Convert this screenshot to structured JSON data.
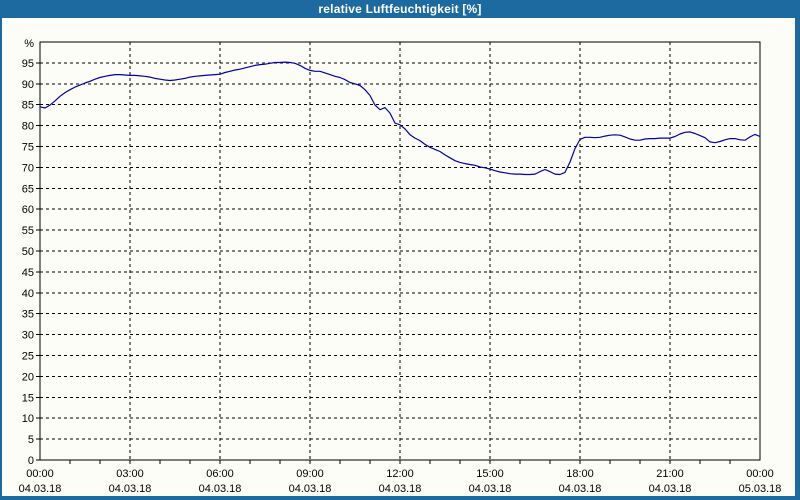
{
  "window": {
    "title": "relative Luftfeuchtigkeit [%]",
    "titlebar_color": "#1c6a9f",
    "background_color": "#fdfdf8"
  },
  "chart_data": {
    "type": "line",
    "title": "relative Luftfeuchtigkeit [%]",
    "ylabel": "%",
    "ylim": [
      0,
      100
    ],
    "y_tick_step": 5,
    "y_tick_labels": [
      "0",
      "5",
      "10",
      "15",
      "20",
      "25",
      "30",
      "35",
      "40",
      "45",
      "50",
      "55",
      "60",
      "65",
      "70",
      "75",
      "80",
      "85",
      "90",
      "95"
    ],
    "xlim_hours": [
      0,
      24
    ],
    "grid": "dashed-black",
    "axis_color": "#000000",
    "legend": "none",
    "x_ticks": [
      {
        "hour": 0,
        "time": "00:00",
        "date": "04.03.18"
      },
      {
        "hour": 3,
        "time": "03:00",
        "date": "04.03.18"
      },
      {
        "hour": 6,
        "time": "06:00",
        "date": "04.03.18"
      },
      {
        "hour": 9,
        "time": "09:00",
        "date": "04.03.18"
      },
      {
        "hour": 12,
        "time": "12:00",
        "date": "04.03.18"
      },
      {
        "hour": 15,
        "time": "15:00",
        "date": "04.03.18"
      },
      {
        "hour": 18,
        "time": "18:00",
        "date": "04.03.18"
      },
      {
        "hour": 21,
        "time": "21:00",
        "date": "04.03.18"
      },
      {
        "hour": 24,
        "time": "00:00",
        "date": "05.03.18"
      }
    ],
    "minor_x_tick_every_hours": 1,
    "series": [
      {
        "name": "relative Luftfeuchtigkeit",
        "unit": "%",
        "color": "#0000aa",
        "points": [
          [
            0,
            84.5
          ],
          [
            0.167,
            84.2
          ],
          [
            0.333,
            84.9
          ],
          [
            0.5,
            85.9
          ],
          [
            0.667,
            87
          ],
          [
            0.833,
            87.9
          ],
          [
            1,
            88.6
          ],
          [
            1.167,
            89.2
          ],
          [
            1.333,
            89.7
          ],
          [
            1.5,
            90.2
          ],
          [
            1.667,
            90.6
          ],
          [
            1.833,
            91.1
          ],
          [
            2,
            91.5
          ],
          [
            2.167,
            91.8
          ],
          [
            2.333,
            92
          ],
          [
            2.5,
            92.2
          ],
          [
            2.667,
            92.2
          ],
          [
            2.833,
            92.1
          ],
          [
            3,
            92
          ],
          [
            3.167,
            92
          ],
          [
            3.333,
            91.9
          ],
          [
            3.5,
            91.8
          ],
          [
            3.667,
            91.6
          ],
          [
            3.833,
            91.3
          ],
          [
            4,
            91.1
          ],
          [
            4.167,
            90.9
          ],
          [
            4.333,
            90.8
          ],
          [
            4.5,
            90.9
          ],
          [
            4.667,
            91.1
          ],
          [
            4.833,
            91.3
          ],
          [
            5,
            91.6
          ],
          [
            5.167,
            91.8
          ],
          [
            5.333,
            91.9
          ],
          [
            5.5,
            92
          ],
          [
            5.667,
            92.1
          ],
          [
            5.833,
            92.2
          ],
          [
            6,
            92.3
          ],
          [
            6.167,
            92.7
          ],
          [
            6.333,
            93
          ],
          [
            6.5,
            93.3
          ],
          [
            6.667,
            93.5
          ],
          [
            6.833,
            93.8
          ],
          [
            7,
            94.1
          ],
          [
            7.167,
            94.4
          ],
          [
            7.333,
            94.6
          ],
          [
            7.5,
            94.7
          ],
          [
            7.667,
            94.9
          ],
          [
            7.833,
            95.1
          ],
          [
            8,
            95.1
          ],
          [
            8.167,
            95.2
          ],
          [
            8.333,
            95.1
          ],
          [
            8.5,
            94.9
          ],
          [
            8.667,
            94.4
          ],
          [
            8.833,
            93.7
          ],
          [
            9,
            93.2
          ],
          [
            9.167,
            93
          ],
          [
            9.333,
            93
          ],
          [
            9.5,
            92.6
          ],
          [
            9.667,
            92.2
          ],
          [
            9.833,
            91.8
          ],
          [
            10,
            91.5
          ],
          [
            10.167,
            91
          ],
          [
            10.333,
            90.3
          ],
          [
            10.5,
            90
          ],
          [
            10.667,
            89.6
          ],
          [
            10.833,
            88.6
          ],
          [
            11,
            87.2
          ],
          [
            11.167,
            84.9
          ],
          [
            11.333,
            83.8
          ],
          [
            11.5,
            84.3
          ],
          [
            11.667,
            83
          ],
          [
            11.833,
            80.6
          ],
          [
            12,
            80.2
          ],
          [
            12.167,
            79.2
          ],
          [
            12.333,
            77.8
          ],
          [
            12.5,
            77
          ],
          [
            12.667,
            76.4
          ],
          [
            12.833,
            75.5
          ],
          [
            13,
            74.8
          ],
          [
            13.167,
            74.3
          ],
          [
            13.333,
            73.8
          ],
          [
            13.5,
            73
          ],
          [
            13.667,
            72.3
          ],
          [
            13.833,
            71.6
          ],
          [
            14,
            71.2
          ],
          [
            14.167,
            70.9
          ],
          [
            14.333,
            70.7
          ],
          [
            14.5,
            70.5
          ],
          [
            14.667,
            70.1
          ],
          [
            14.833,
            69.9
          ],
          [
            15,
            69.6
          ],
          [
            15.167,
            69.2
          ],
          [
            15.333,
            68.9
          ],
          [
            15.5,
            68.7
          ],
          [
            15.667,
            68.5
          ],
          [
            15.833,
            68.4
          ],
          [
            16,
            68.4
          ],
          [
            16.167,
            68.3
          ],
          [
            16.333,
            68.3
          ],
          [
            16.5,
            68.4
          ],
          [
            16.667,
            69
          ],
          [
            16.833,
            69.5
          ],
          [
            17,
            69
          ],
          [
            17.167,
            68.4
          ],
          [
            17.333,
            68.3
          ],
          [
            17.5,
            68.8
          ],
          [
            17.667,
            71.3
          ],
          [
            17.833,
            74.5
          ],
          [
            18,
            76.7
          ],
          [
            18.167,
            77.2
          ],
          [
            18.333,
            77.2
          ],
          [
            18.5,
            77.1
          ],
          [
            18.667,
            77.2
          ],
          [
            18.833,
            77.5
          ],
          [
            19,
            77.7
          ],
          [
            19.167,
            77.8
          ],
          [
            19.333,
            77.7
          ],
          [
            19.5,
            77.3
          ],
          [
            19.667,
            76.8
          ],
          [
            19.833,
            76.5
          ],
          [
            20,
            76.5
          ],
          [
            20.167,
            76.8
          ],
          [
            20.333,
            76.9
          ],
          [
            20.5,
            76.9
          ],
          [
            20.667,
            77
          ],
          [
            20.833,
            77
          ],
          [
            21,
            77
          ],
          [
            21.167,
            77.4
          ],
          [
            21.333,
            78
          ],
          [
            21.5,
            78.4
          ],
          [
            21.667,
            78.5
          ],
          [
            21.833,
            78.1
          ],
          [
            22,
            77.6
          ],
          [
            22.167,
            77.1
          ],
          [
            22.333,
            76.1
          ],
          [
            22.5,
            75.9
          ],
          [
            22.667,
            76.2
          ],
          [
            22.833,
            76.6
          ],
          [
            23,
            76.9
          ],
          [
            23.167,
            76.9
          ],
          [
            23.333,
            76.6
          ],
          [
            23.5,
            76.5
          ],
          [
            23.667,
            77.3
          ],
          [
            23.833,
            77.9
          ],
          [
            24,
            77.4
          ]
        ]
      }
    ]
  }
}
